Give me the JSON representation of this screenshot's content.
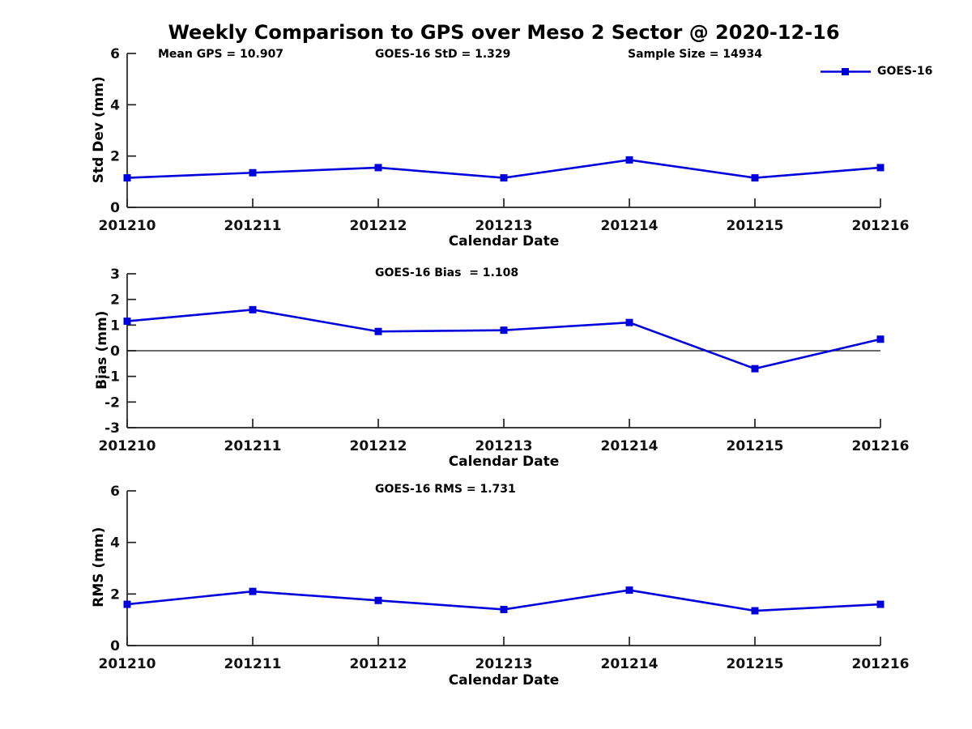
{
  "header": {
    "title": "Weekly Comparison to GPS over Meso 2 Sector @ 2020-12-16"
  },
  "annotations": {
    "mean_gps": "Mean GPS = 10.907",
    "std": "GOES-16 StD = 1.329",
    "sample_size": "Sample Size = 14934"
  },
  "legend": {
    "label": "GOES-16",
    "position": "top-right"
  },
  "colors": {
    "line": "#0000DD",
    "axis": "#222222",
    "tick_text": "#111111",
    "zero_line": "#111111",
    "text": "#000000",
    "background": "#ffffff"
  },
  "chart_data": [
    {
      "type": "line",
      "title": "",
      "categories": [
        "201210",
        "201211",
        "201212",
        "201213",
        "201214",
        "201215",
        "201216"
      ],
      "series": [
        {
          "name": "GOES-16",
          "values": [
            1.15,
            1.35,
            1.55,
            1.15,
            1.85,
            1.15,
            1.55
          ]
        }
      ],
      "xlabel": "Calendar Date",
      "ylabel": "Std Dev (mm)",
      "ylim": [
        0,
        6
      ],
      "yticks": [
        0,
        2,
        4,
        6
      ],
      "grid": false,
      "zero_line": false,
      "marker": "square",
      "legend_position": "top-right"
    },
    {
      "type": "line",
      "title": "GOES-16 Bias  = 1.108",
      "categories": [
        "201210",
        "201211",
        "201212",
        "201213",
        "201214",
        "201215",
        "201216"
      ],
      "series": [
        {
          "name": "GOES-16",
          "values": [
            1.15,
            1.6,
            0.75,
            0.8,
            1.1,
            -0.7,
            0.45
          ]
        }
      ],
      "xlabel": "Calendar Date",
      "ylabel": "Bias (mm)",
      "ylim": [
        -3,
        3
      ],
      "yticks": [
        -3,
        -2,
        -1,
        0,
        1,
        2,
        3
      ],
      "grid": false,
      "zero_line": true,
      "marker": "square",
      "legend_position": "none"
    },
    {
      "type": "line",
      "title": "GOES-16 RMS = 1.731",
      "categories": [
        "201210",
        "201211",
        "201212",
        "201213",
        "201214",
        "201215",
        "201216"
      ],
      "series": [
        {
          "name": "GOES-16",
          "values": [
            1.6,
            2.1,
            1.75,
            1.4,
            2.15,
            1.35,
            1.6
          ]
        }
      ],
      "xlabel": "Calendar Date",
      "ylabel": "RMS (mm)",
      "ylim": [
        0,
        6
      ],
      "yticks": [
        0,
        2,
        4,
        6
      ],
      "grid": false,
      "zero_line": false,
      "marker": "square",
      "legend_position": "none"
    }
  ]
}
